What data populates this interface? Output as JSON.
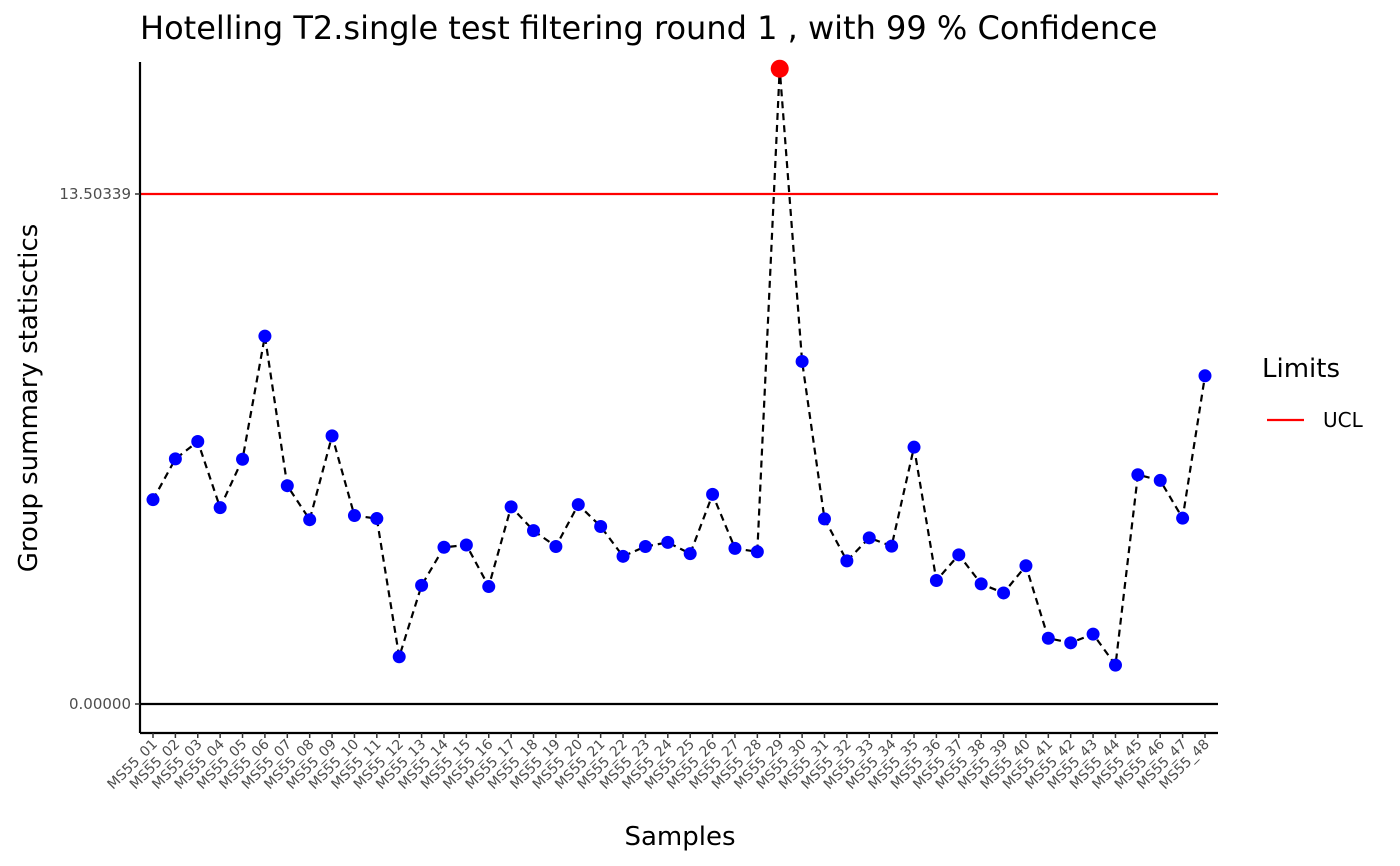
{
  "chart_data": {
    "type": "line",
    "title": "Hotelling  T2.single  test filtering round  1 , with  99 % Confidence",
    "xlabel": "Samples",
    "ylabel": "Group summary statisctics",
    "y_ticks": [
      {
        "value": 0,
        "label": "0.00000"
      },
      {
        "value": 13.50339,
        "label": "13.50339"
      }
    ],
    "ylim": [
      -0.77,
      17.6
    ],
    "grid": false,
    "line_style": "dashed",
    "colors": {
      "line": "#000000",
      "in_control": "#0000ff",
      "out_of_control": "#ff0000",
      "ucl": "#ff0000",
      "baseline": "#000000"
    },
    "categories": [
      "MS55_01",
      "MS55_02",
      "MS55_03",
      "MS55_04",
      "MS55_05",
      "MS55_06",
      "MS55_07",
      "MS55_08",
      "MS55_09",
      "MS55_10",
      "MS55_11",
      "MS55_12",
      "MS55_13",
      "MS55_14",
      "MS55_15",
      "MS55_16",
      "MS55_17",
      "MS55_18",
      "MS55_19",
      "MS55_20",
      "MS55_21",
      "MS55_22",
      "MS55_23",
      "MS55_24",
      "MS55_25",
      "MS55_26",
      "MS55_27",
      "MS55_28",
      "MS55_29",
      "MS55_30",
      "MS55_31",
      "MS55_32",
      "MS55_33",
      "MS55_34",
      "MS55_35",
      "MS55_36",
      "MS55_37",
      "MS55_38",
      "MS55_39",
      "MS55_40",
      "MS55_41",
      "MS55_42",
      "MS55_43",
      "MS55_44",
      "MS55_45",
      "MS55_46",
      "MS55_47",
      "MS55_48"
    ],
    "values": [
      5.41,
      6.49,
      6.95,
      5.2,
      6.48,
      9.74,
      5.78,
      4.88,
      7.1,
      4.99,
      4.91,
      1.25,
      3.14,
      4.15,
      4.21,
      3.11,
      5.22,
      4.59,
      4.17,
      5.28,
      4.7,
      3.91,
      4.17,
      4.28,
      3.98,
      5.55,
      4.12,
      4.03,
      16.82,
      9.07,
      4.9,
      3.79,
      4.4,
      4.18,
      6.8,
      3.27,
      3.95,
      3.18,
      2.94,
      3.66,
      1.74,
      1.62,
      1.85,
      1.03,
      6.07,
      5.92,
      4.92,
      8.69
    ],
    "out_of_control": [
      "MS55_29"
    ],
    "limits": [
      {
        "name": "UCL",
        "value": 13.50339
      }
    ],
    "legend": {
      "title": "Limits",
      "position": "right",
      "entries": [
        "UCL"
      ]
    }
  }
}
